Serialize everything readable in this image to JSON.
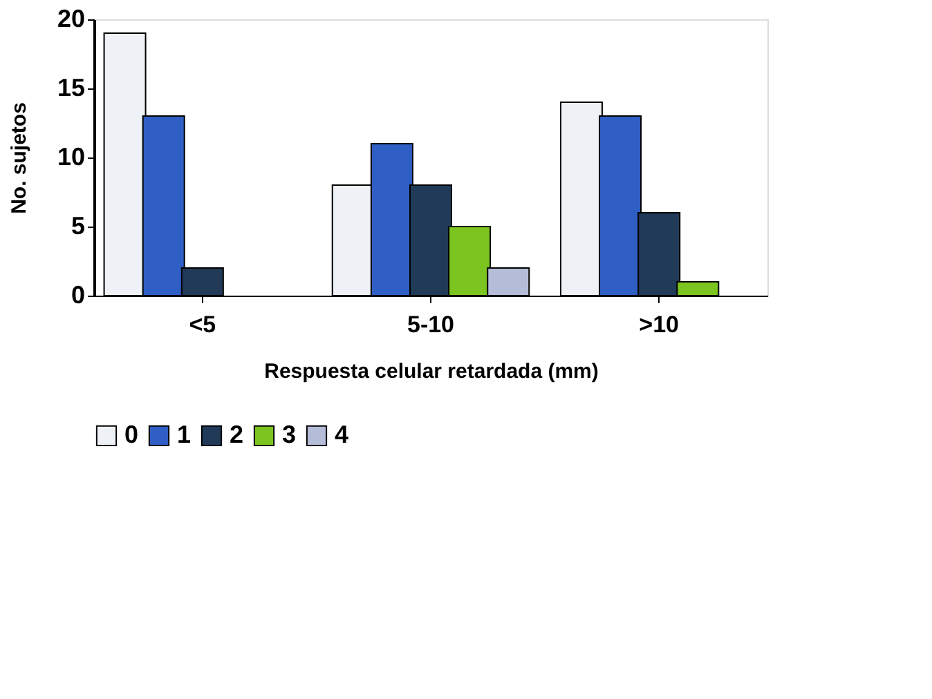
{
  "chart_data": {
    "type": "bar",
    "xlabel": "Respuesta celular retardada (mm)",
    "ylabel": "No. sujetos",
    "categories": [
      "<5",
      "5-10",
      ">10"
    ],
    "series": [
      {
        "name": "0",
        "color": "#eef2f6",
        "values": [
          19,
          8,
          14
        ]
      },
      {
        "name": "1",
        "color": "#2f5fc4",
        "values": [
          13,
          11,
          13
        ]
      },
      {
        "name": "2",
        "color": "#203a58",
        "values": [
          2,
          8,
          6
        ]
      },
      {
        "name": "3",
        "color": "#7cc520",
        "values": [
          null,
          5,
          1
        ]
      },
      {
        "name": "4",
        "color": "#b4bcd8",
        "values": [
          null,
          2,
          null
        ]
      }
    ],
    "ylim": [
      0,
      20
    ],
    "yticks": [
      0,
      5,
      10,
      15,
      20
    ],
    "grid": false,
    "legend": "bottom"
  }
}
